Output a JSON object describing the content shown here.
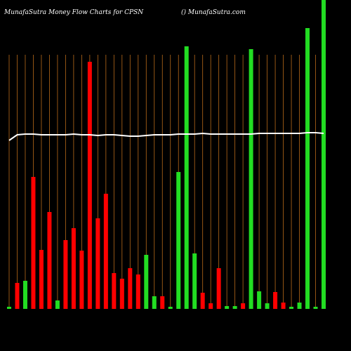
{
  "chart_data": {
    "type": "bar",
    "title": "MunafaSutra  Money Flow  Charts for CPSN",
    "subtitle": "() MunafaSutra.com",
    "categories": [
      null,
      null,
      null,
      null,
      null,
      null,
      null,
      null,
      null,
      null,
      null,
      null,
      null,
      null,
      null,
      null,
      null,
      null,
      null,
      null,
      null,
      null,
      null,
      null,
      null,
      null,
      null,
      null,
      null,
      null,
      null,
      null,
      null,
      null,
      null,
      null,
      null,
      null,
      null,
      null
    ],
    "values": [
      3,
      37,
      40,
      188,
      84,
      138,
      12,
      98,
      115,
      83,
      352,
      129,
      164,
      51,
      43,
      58,
      49,
      77,
      18,
      18,
      3,
      195,
      374,
      79,
      23,
      8,
      58,
      4,
      4,
      8,
      370,
      25,
      8,
      24,
      9,
      3,
      9,
      400,
      3,
      440
    ],
    "colors": [
      "#22dd22",
      "#ff0000",
      "#22dd22",
      "#ff0000",
      "#ff0000",
      "#ff0000",
      "#22dd22",
      "#ff0000",
      "#ff0000",
      "#ff0000",
      "#ff0000",
      "#ff0000",
      "#ff0000",
      "#ff0000",
      "#ff0000",
      "#ff0000",
      "#ff0000",
      "#22dd22",
      "#22dd22",
      "#ff0000",
      "#22dd22",
      "#22dd22",
      "#22dd22",
      "#22dd22",
      "#ff0000",
      "#ff0000",
      "#ff0000",
      "#22dd22",
      "#22dd22",
      "#ff0000",
      "#22dd22",
      "#22dd22",
      "#22dd22",
      "#ff0000",
      "#ff0000",
      "#22dd22",
      "#22dd22",
      "#22dd22",
      "#22dd22",
      "#22dd22"
    ],
    "line": {
      "color": "#ffffff",
      "values": [
        240,
        248,
        249,
        249,
        248,
        248,
        248,
        248,
        249,
        248,
        248,
        247,
        248,
        248,
        247,
        246,
        246,
        247,
        248,
        248,
        248,
        249,
        249,
        249,
        250,
        249,
        249,
        249,
        249,
        249,
        249,
        250,
        250,
        250,
        250,
        250,
        250,
        251,
        251,
        250
      ]
    },
    "ylim": [
      0,
      440
    ],
    "grid_color": "#b86a1a"
  }
}
